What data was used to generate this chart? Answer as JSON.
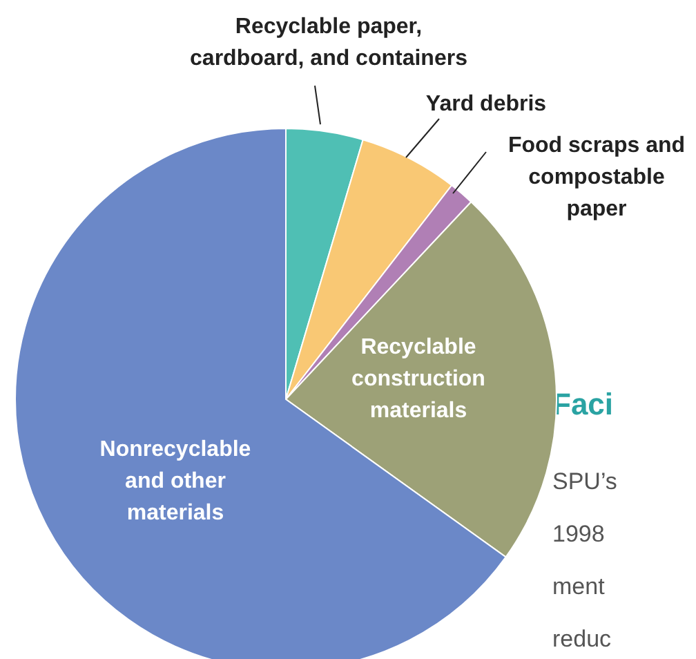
{
  "chart_data": {
    "type": "pie",
    "categories": [
      "Recyclable paper, cardboard, and containers",
      "Yard debris",
      "Food scraps and compostable paper",
      "Recyclable construction materials",
      "Nonrecyclable and other materials"
    ],
    "values": [
      4.6,
      5.9,
      1.5,
      22.9,
      65.1
    ],
    "colors": [
      "#4fbfb4",
      "#f9c874",
      "#b07fb5",
      "#9da177",
      "#6b88c8"
    ],
    "annotations": [
      "Faci",
      "SPU’s",
      "1998",
      "ment",
      "reduc"
    ]
  }
}
